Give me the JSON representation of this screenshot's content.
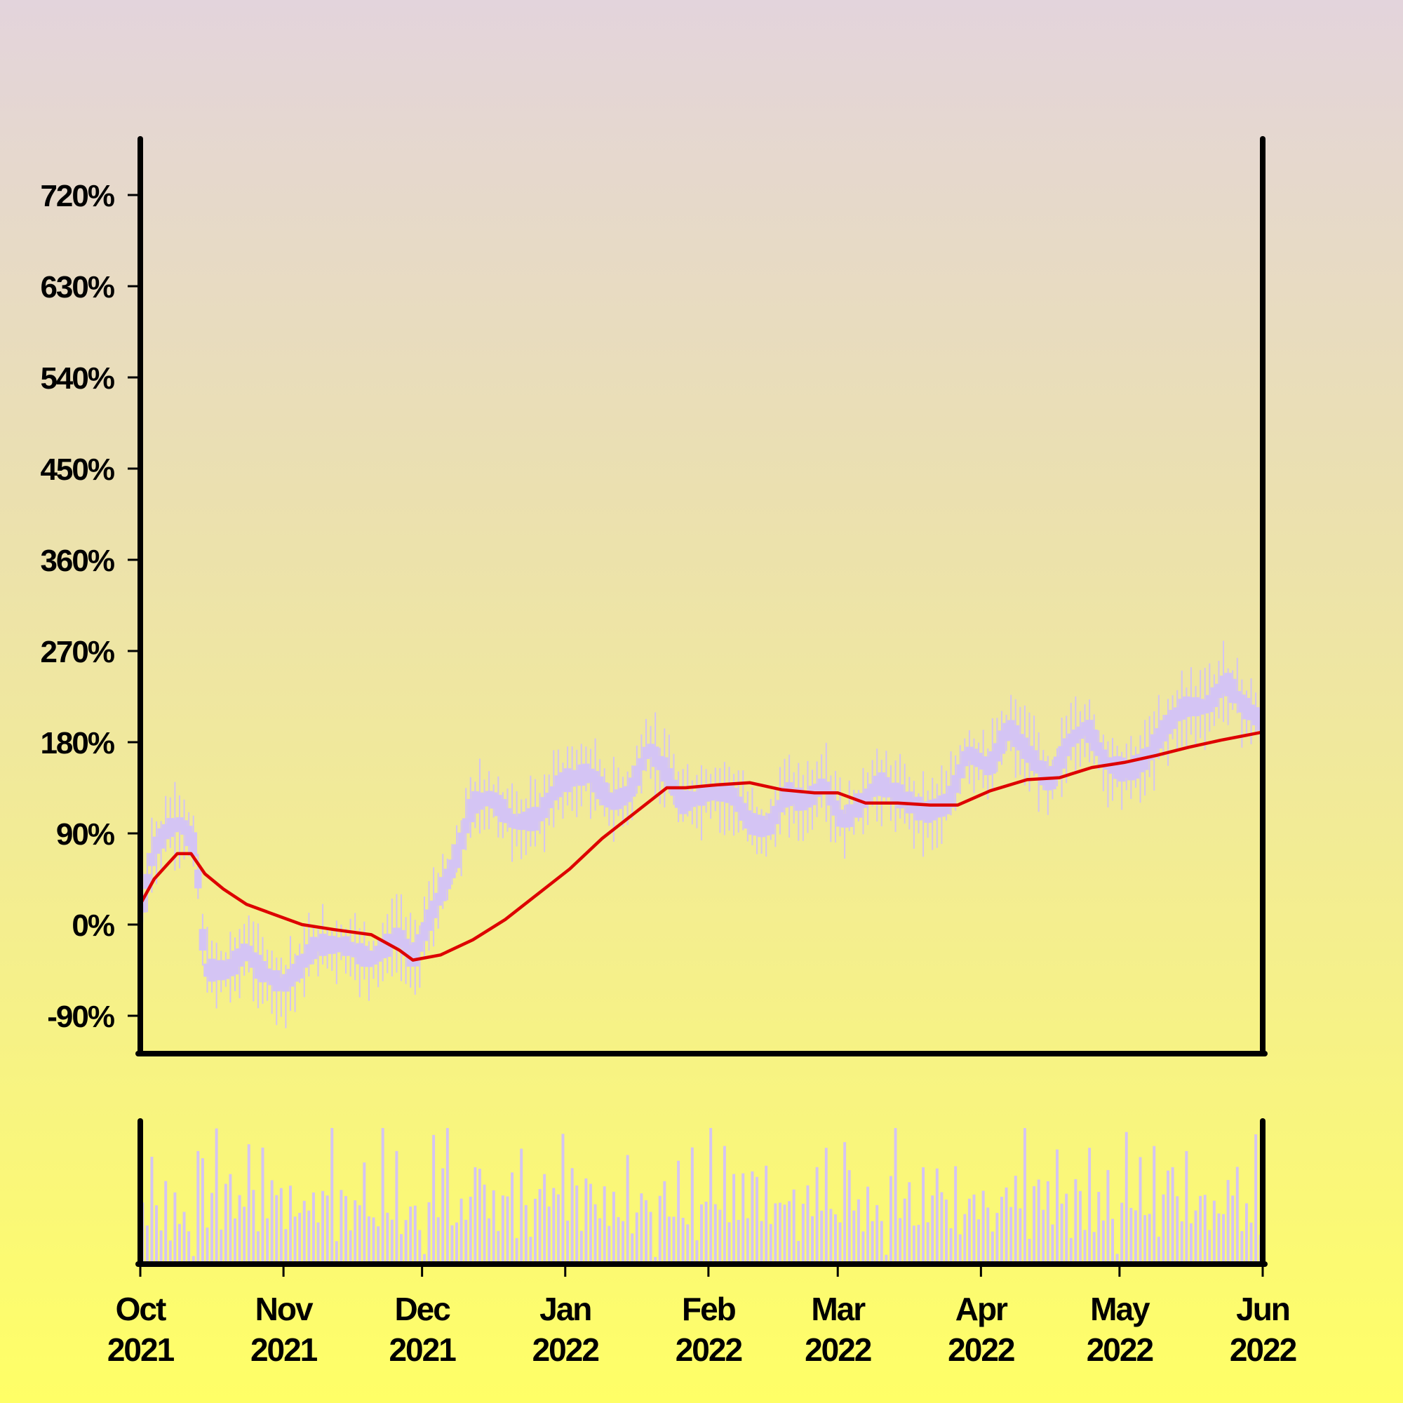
{
  "chart_data": {
    "type": "candlestick",
    "title": "",
    "xlabel": "",
    "ylabel": "",
    "ylim": [
      -120,
      800
    ],
    "y_ticks": [
      {
        "value": -90,
        "label": "-90%"
      },
      {
        "value": 0,
        "label": "0%"
      },
      {
        "value": 90,
        "label": "90%"
      },
      {
        "value": 180,
        "label": "180%"
      },
      {
        "value": 270,
        "label": "270%"
      },
      {
        "value": 360,
        "label": "360%"
      },
      {
        "value": 450,
        "label": "450%"
      },
      {
        "value": 540,
        "label": "540%"
      },
      {
        "value": 630,
        "label": "630%"
      },
      {
        "value": 720,
        "label": "720%"
      }
    ],
    "x_ticks": [
      {
        "date": "2021-10-01",
        "month": "Oct",
        "year": "2021"
      },
      {
        "date": "2021-11-01",
        "month": "Nov",
        "year": "2021"
      },
      {
        "date": "2021-12-01",
        "month": "Dec",
        "year": "2021"
      },
      {
        "date": "2022-01-01",
        "month": "Jan",
        "year": "2022"
      },
      {
        "date": "2022-02-01",
        "month": "Feb",
        "year": "2022"
      },
      {
        "date": "2022-03-01",
        "month": "Mar",
        "year": "2022"
      },
      {
        "date": "2022-04-01",
        "month": "Apr",
        "year": "2022"
      },
      {
        "date": "2022-05-01",
        "month": "May",
        "year": "2022"
      },
      {
        "date": "2022-06-01",
        "month": "Jun",
        "year": "2022"
      }
    ],
    "xlim": [
      "2021-10-01",
      "2022-06-01"
    ],
    "price_series": {
      "name": "",
      "color": "#d4c4f4",
      "key_points": [
        [
          "2021-10-01",
          10
        ],
        [
          "2021-10-04",
          75
        ],
        [
          "2021-10-07",
          95
        ],
        [
          "2021-10-10",
          100
        ],
        [
          "2021-10-13",
          75
        ],
        [
          "2021-10-15",
          -45
        ],
        [
          "2021-10-20",
          -45
        ],
        [
          "2021-10-24",
          -25
        ],
        [
          "2021-10-27",
          -45
        ],
        [
          "2021-11-01",
          -60
        ],
        [
          "2021-11-04",
          -45
        ],
        [
          "2021-11-08",
          -20
        ],
        [
          "2021-11-14",
          -20
        ],
        [
          "2021-11-20",
          -35
        ],
        [
          "2021-11-26",
          -10
        ],
        [
          "2021-11-29",
          -35
        ],
        [
          "2021-12-03",
          10
        ],
        [
          "2021-12-08",
          60
        ],
        [
          "2021-12-12",
          120
        ],
        [
          "2021-12-16",
          125
        ],
        [
          "2021-12-21",
          100
        ],
        [
          "2021-12-26",
          105
        ],
        [
          "2021-12-31",
          140
        ],
        [
          "2022-01-06",
          150
        ],
        [
          "2022-01-11",
          120
        ],
        [
          "2022-01-15",
          130
        ],
        [
          "2022-01-19",
          175
        ],
        [
          "2022-01-23",
          150
        ],
        [
          "2022-01-26",
          120
        ],
        [
          "2022-02-02",
          130
        ],
        [
          "2022-02-06",
          130
        ],
        [
          "2022-02-10",
          100
        ],
        [
          "2022-02-14",
          95
        ],
        [
          "2022-02-18",
          130
        ],
        [
          "2022-02-22",
          120
        ],
        [
          "2022-02-26",
          140
        ],
        [
          "2022-03-02",
          100
        ],
        [
          "2022-03-06",
          120
        ],
        [
          "2022-03-10",
          140
        ],
        [
          "2022-03-15",
          125
        ],
        [
          "2022-03-20",
          110
        ],
        [
          "2022-03-25",
          120
        ],
        [
          "2022-03-29",
          170
        ],
        [
          "2022-04-03",
          155
        ],
        [
          "2022-04-07",
          195
        ],
        [
          "2022-04-12",
          165
        ],
        [
          "2022-04-16",
          140
        ],
        [
          "2022-04-20",
          180
        ],
        [
          "2022-04-24",
          195
        ],
        [
          "2022-04-28",
          160
        ],
        [
          "2022-05-03",
          150
        ],
        [
          "2022-05-07",
          165
        ],
        [
          "2022-05-11",
          195
        ],
        [
          "2022-05-15",
          215
        ],
        [
          "2022-05-20",
          215
        ],
        [
          "2022-05-24",
          240
        ],
        [
          "2022-05-28",
          215
        ],
        [
          "2022-06-01",
          200
        ]
      ]
    },
    "moving_average_series": {
      "name": "",
      "color": "#dd0000",
      "key_points": [
        [
          "2021-10-01",
          20
        ],
        [
          "2021-10-04",
          45
        ],
        [
          "2021-10-07",
          60
        ],
        [
          "2021-10-09",
          70
        ],
        [
          "2021-10-12",
          70
        ],
        [
          "2021-10-15",
          50
        ],
        [
          "2021-10-19",
          35
        ],
        [
          "2021-10-24",
          20
        ],
        [
          "2021-10-30",
          10
        ],
        [
          "2021-11-05",
          0
        ],
        [
          "2021-11-12",
          -5
        ],
        [
          "2021-11-20",
          -10
        ],
        [
          "2021-11-26",
          -25
        ],
        [
          "2021-11-29",
          -35
        ],
        [
          "2021-12-05",
          -30
        ],
        [
          "2021-12-12",
          -15
        ],
        [
          "2021-12-19",
          5
        ],
        [
          "2021-12-26",
          30
        ],
        [
          "2022-01-02",
          55
        ],
        [
          "2022-01-09",
          85
        ],
        [
          "2022-01-16",
          110
        ],
        [
          "2022-01-23",
          135
        ],
        [
          "2022-01-27",
          135
        ],
        [
          "2022-02-03",
          138
        ],
        [
          "2022-02-10",
          140
        ],
        [
          "2022-02-17",
          133
        ],
        [
          "2022-02-24",
          130
        ],
        [
          "2022-03-01",
          130
        ],
        [
          "2022-03-07",
          120
        ],
        [
          "2022-03-14",
          120
        ],
        [
          "2022-03-21",
          118
        ],
        [
          "2022-03-27",
          118
        ],
        [
          "2022-04-03",
          132
        ],
        [
          "2022-04-11",
          143
        ],
        [
          "2022-04-18",
          145
        ],
        [
          "2022-04-25",
          155
        ],
        [
          "2022-05-02",
          160
        ],
        [
          "2022-05-09",
          167
        ],
        [
          "2022-05-16",
          175
        ],
        [
          "2022-05-23",
          182
        ],
        [
          "2022-06-01",
          190
        ]
      ]
    },
    "volume_panel": {
      "color": "#d4c4f4",
      "range": [
        0,
        1
      ],
      "levels": [
        0.45,
        0.25,
        0.8,
        0.55,
        0.3,
        0.7,
        0.2,
        0.5,
        0.4,
        0.6,
        0.3,
        0.05,
        0.65,
        0.85,
        0.35,
        0.55,
        0.9,
        0.3,
        0.45,
        0.7,
        0.25,
        0.4,
        0.6,
        0.8,
        0.5,
        0.35,
        0.7,
        0.3,
        0.55,
        0.4,
        0.65,
        0.25,
        0.75,
        0.5,
        0.3,
        0.6,
        0.45,
        0.7,
        0.35,
        0.55,
        0.4,
        0.8,
        0.25,
        0.6,
        0.5,
        0.3,
        0.65,
        0.45,
        0.7,
        0.35
      ]
    }
  }
}
